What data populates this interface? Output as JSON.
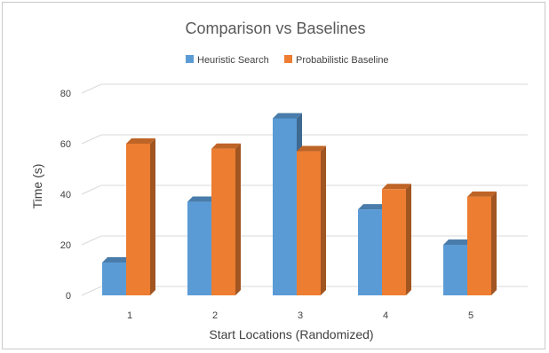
{
  "chart_data": {
    "type": "bar",
    "title": "Comparison vs Baselines",
    "xlabel": "Start Locations (Randomized)",
    "ylabel": "Time (s)",
    "categories": [
      "1",
      "2",
      "3",
      "4",
      "5"
    ],
    "ylim": [
      0,
      80
    ],
    "yticks": [
      "0",
      "20",
      "40",
      "60",
      "80"
    ],
    "grid": true,
    "legend_position": "top",
    "style": "3d-clustered-column",
    "series": [
      {
        "name": "Heuristic Search",
        "color": "#5b9bd5",
        "values": [
          13,
          37,
          70,
          34,
          20
        ]
      },
      {
        "name": "Probabilistic Baseline",
        "color": "#ed7d31",
        "values": [
          60,
          58,
          57,
          42,
          39
        ]
      }
    ]
  }
}
